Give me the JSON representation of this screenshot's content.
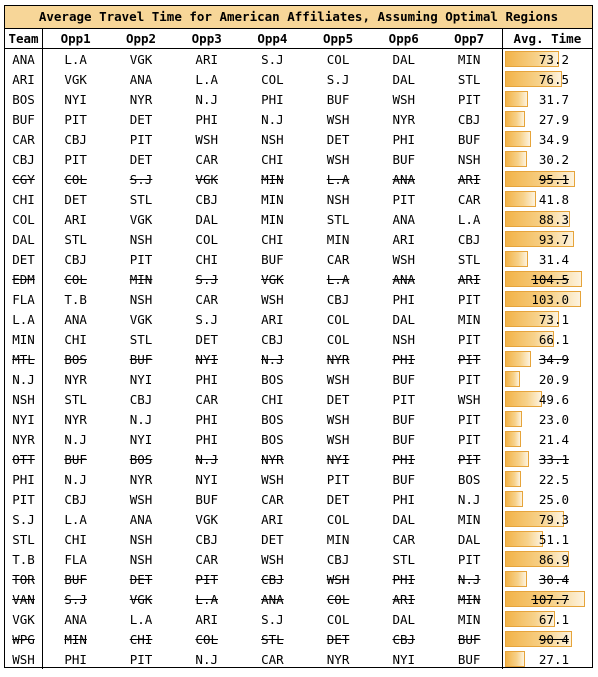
{
  "title": "Average Travel Time for American Affiliates, Assuming Optimal Regions",
  "headers": [
    "Team",
    "Opp1",
    "Opp2",
    "Opp3",
    "Opp4",
    "Opp5",
    "Opp6",
    "Opp7",
    "Avg. Time"
  ],
  "avg_max": 107.7,
  "rows": [
    {
      "team": "ANA",
      "opps": [
        "L.A",
        "VGK",
        "ARI",
        "S.J",
        "COL",
        "DAL",
        "MIN"
      ],
      "avg": "73.2",
      "struck": false
    },
    {
      "team": "ARI",
      "opps": [
        "VGK",
        "ANA",
        "L.A",
        "COL",
        "S.J",
        "DAL",
        "STL"
      ],
      "avg": "76.5",
      "struck": false
    },
    {
      "team": "BOS",
      "opps": [
        "NYI",
        "NYR",
        "N.J",
        "PHI",
        "BUF",
        "WSH",
        "PIT"
      ],
      "avg": "31.7",
      "struck": false
    },
    {
      "team": "BUF",
      "opps": [
        "PIT",
        "DET",
        "PHI",
        "N.J",
        "WSH",
        "NYR",
        "CBJ"
      ],
      "avg": "27.9",
      "struck": false
    },
    {
      "team": "CAR",
      "opps": [
        "CBJ",
        "PIT",
        "WSH",
        "NSH",
        "DET",
        "PHI",
        "BUF"
      ],
      "avg": "34.9",
      "struck": false
    },
    {
      "team": "CBJ",
      "opps": [
        "PIT",
        "DET",
        "CAR",
        "CHI",
        "WSH",
        "BUF",
        "NSH"
      ],
      "avg": "30.2",
      "struck": false
    },
    {
      "team": "CGY",
      "opps": [
        "COL",
        "S.J",
        "VGK",
        "MIN",
        "L.A",
        "ANA",
        "ARI"
      ],
      "avg": "95.1",
      "struck": true
    },
    {
      "team": "CHI",
      "opps": [
        "DET",
        "STL",
        "CBJ",
        "MIN",
        "NSH",
        "PIT",
        "CAR"
      ],
      "avg": "41.8",
      "struck": false
    },
    {
      "team": "COL",
      "opps": [
        "ARI",
        "VGK",
        "DAL",
        "MIN",
        "STL",
        "ANA",
        "L.A"
      ],
      "avg": "88.3",
      "struck": false
    },
    {
      "team": "DAL",
      "opps": [
        "STL",
        "NSH",
        "COL",
        "CHI",
        "MIN",
        "ARI",
        "CBJ"
      ],
      "avg": "93.7",
      "struck": false
    },
    {
      "team": "DET",
      "opps": [
        "CBJ",
        "PIT",
        "CHI",
        "BUF",
        "CAR",
        "WSH",
        "STL"
      ],
      "avg": "31.4",
      "struck": false
    },
    {
      "team": "EDM",
      "opps": [
        "COL",
        "MIN",
        "S.J",
        "VGK",
        "L.A",
        "ANA",
        "ARI"
      ],
      "avg": "104.5",
      "struck": true
    },
    {
      "team": "FLA",
      "opps": [
        "T.B",
        "NSH",
        "CAR",
        "WSH",
        "CBJ",
        "PHI",
        "PIT"
      ],
      "avg": "103.0",
      "struck": false
    },
    {
      "team": "L.A",
      "opps": [
        "ANA",
        "VGK",
        "S.J",
        "ARI",
        "COL",
        "DAL",
        "MIN"
      ],
      "avg": "73.1",
      "struck": false
    },
    {
      "team": "MIN",
      "opps": [
        "CHI",
        "STL",
        "DET",
        "CBJ",
        "COL",
        "NSH",
        "PIT"
      ],
      "avg": "66.1",
      "struck": false
    },
    {
      "team": "MTL",
      "opps": [
        "BOS",
        "BUF",
        "NYI",
        "N.J",
        "NYR",
        "PHI",
        "PIT"
      ],
      "avg": "34.9",
      "struck": true
    },
    {
      "team": "N.J",
      "opps": [
        "NYR",
        "NYI",
        "PHI",
        "BOS",
        "WSH",
        "BUF",
        "PIT"
      ],
      "avg": "20.9",
      "struck": false
    },
    {
      "team": "NSH",
      "opps": [
        "STL",
        "CBJ",
        "CAR",
        "CHI",
        "DET",
        "PIT",
        "WSH"
      ],
      "avg": "49.6",
      "struck": false
    },
    {
      "team": "NYI",
      "opps": [
        "NYR",
        "N.J",
        "PHI",
        "BOS",
        "WSH",
        "BUF",
        "PIT"
      ],
      "avg": "23.0",
      "struck": false
    },
    {
      "team": "NYR",
      "opps": [
        "N.J",
        "NYI",
        "PHI",
        "BOS",
        "WSH",
        "BUF",
        "PIT"
      ],
      "avg": "21.4",
      "struck": false
    },
    {
      "team": "OTT",
      "opps": [
        "BUF",
        "BOS",
        "N.J",
        "NYR",
        "NYI",
        "PHI",
        "PIT"
      ],
      "avg": "33.1",
      "struck": true
    },
    {
      "team": "PHI",
      "opps": [
        "N.J",
        "NYR",
        "NYI",
        "WSH",
        "PIT",
        "BUF",
        "BOS"
      ],
      "avg": "22.5",
      "struck": false
    },
    {
      "team": "PIT",
      "opps": [
        "CBJ",
        "WSH",
        "BUF",
        "CAR",
        "DET",
        "PHI",
        "N.J"
      ],
      "avg": "25.0",
      "struck": false
    },
    {
      "team": "S.J",
      "opps": [
        "L.A",
        "ANA",
        "VGK",
        "ARI",
        "COL",
        "DAL",
        "MIN"
      ],
      "avg": "79.3",
      "struck": false
    },
    {
      "team": "STL",
      "opps": [
        "CHI",
        "NSH",
        "CBJ",
        "DET",
        "MIN",
        "CAR",
        "DAL"
      ],
      "avg": "51.1",
      "struck": false
    },
    {
      "team": "T.B",
      "opps": [
        "FLA",
        "NSH",
        "CAR",
        "WSH",
        "CBJ",
        "STL",
        "PIT"
      ],
      "avg": "86.9",
      "struck": false
    },
    {
      "team": "TOR",
      "opps": [
        "BUF",
        "DET",
        "PIT",
        "CBJ",
        "WSH",
        "PHI",
        "N.J"
      ],
      "avg": "30.4",
      "struck": true
    },
    {
      "team": "VAN",
      "opps": [
        "S.J",
        "VGK",
        "L.A",
        "ANA",
        "COL",
        "ARI",
        "MIN"
      ],
      "avg": "107.7",
      "struck": true
    },
    {
      "team": "VGK",
      "opps": [
        "ANA",
        "L.A",
        "ARI",
        "S.J",
        "COL",
        "DAL",
        "MIN"
      ],
      "avg": "67.1",
      "struck": false
    },
    {
      "team": "WPG",
      "opps": [
        "MIN",
        "CHI",
        "COL",
        "STL",
        "DET",
        "CBJ",
        "BUF"
      ],
      "avg": "90.4",
      "struck": true
    },
    {
      "team": "WSH",
      "opps": [
        "PHI",
        "PIT",
        "N.J",
        "CAR",
        "NYR",
        "NYI",
        "BUF"
      ],
      "avg": "27.1",
      "struck": false
    }
  ]
}
